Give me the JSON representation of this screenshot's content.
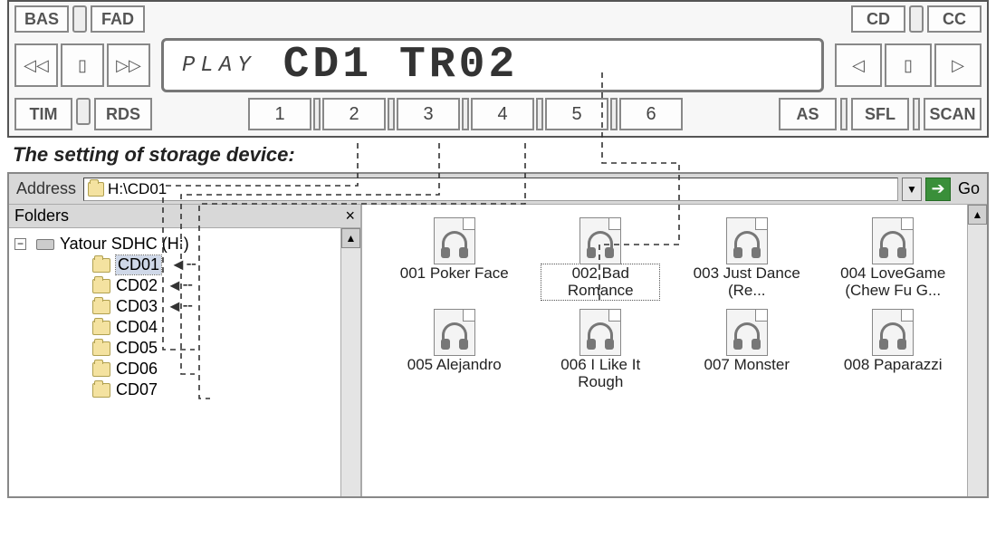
{
  "stereo": {
    "top_left": [
      "BAS",
      "FAD"
    ],
    "top_right": [
      "CD",
      "CC"
    ],
    "lcd": {
      "status": "PLAY",
      "line1": "CD1",
      "line2": "TR02"
    },
    "bottom_left": [
      "TIM",
      "RDS"
    ],
    "presets": [
      "1",
      "2",
      "3",
      "4",
      "5",
      "6"
    ],
    "bottom_right": [
      "AS",
      "SFL",
      "SCAN"
    ]
  },
  "heading": "The setting of storage device:",
  "explorer": {
    "address_label": "Address",
    "path": "H:\\CD01",
    "go_label": "Go",
    "folders_label": "Folders",
    "tree": {
      "root_label": "Yatour SDHC (H:)",
      "children": [
        "CD01",
        "CD02",
        "CD03",
        "CD04",
        "CD05",
        "CD06",
        "CD07"
      ],
      "selected": "CD01",
      "arrow_targets": [
        "CD01",
        "CD02",
        "CD03"
      ]
    },
    "files": [
      {
        "label": "001 Poker Face"
      },
      {
        "label": "002 Bad Romance",
        "selected": true
      },
      {
        "label": "003 Just Dance (Re..."
      },
      {
        "label": "004 LoveGame (Chew Fu G..."
      },
      {
        "label": "005 Alejandro"
      },
      {
        "label": "006 I Like It Rough"
      },
      {
        "label": "007 Monster"
      },
      {
        "label": "008 Paparazzi"
      }
    ]
  },
  "connectors": {
    "stroke": "#333333",
    "dash": "6,5",
    "width": 1.6,
    "paths": [
      "M 395 158 L 395 205 L 180 205 L 180 386 L 215 386",
      "M 485 158 L 485 215 L 200 215 L 200 413 L 215 413",
      "M 580 158 L 580 225 L 220 225 L 220 440 L 232 440",
      "M 665 80  L 665 180 L 750 180 L 750 270 L 662 270 L 662 335"
    ]
  }
}
